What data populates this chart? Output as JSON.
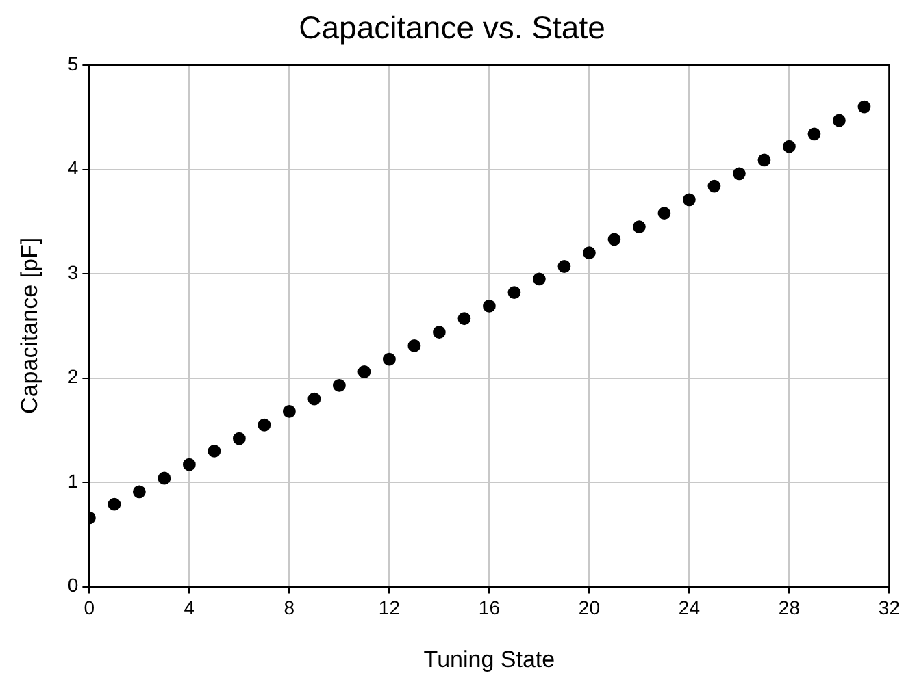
{
  "chart_data": {
    "type": "scatter",
    "title": "Capacitance vs. State",
    "xlabel": "Tuning State",
    "ylabel": "Capacitance [pF]",
    "x": [
      0,
      1,
      2,
      3,
      4,
      5,
      6,
      7,
      8,
      9,
      10,
      11,
      12,
      13,
      14,
      15,
      16,
      17,
      18,
      19,
      20,
      21,
      22,
      23,
      24,
      25,
      26,
      27,
      28,
      29,
      30,
      31
    ],
    "series": [
      {
        "color": "#000000",
        "values": [
          0.66,
          0.79,
          0.91,
          1.04,
          1.17,
          1.3,
          1.42,
          1.55,
          1.68,
          1.8,
          1.93,
          2.06,
          2.18,
          2.31,
          2.44,
          2.57,
          2.69,
          2.82,
          2.95,
          3.07,
          3.2,
          3.33,
          3.45,
          3.58,
          3.71,
          3.84,
          3.96,
          4.09,
          4.22,
          4.34,
          4.47,
          4.6
        ]
      }
    ],
    "xlim": [
      0,
      32
    ],
    "xticks": [
      0,
      4,
      8,
      12,
      16,
      20,
      24,
      28,
      32
    ],
    "ylim": [
      0,
      5
    ],
    "yticks": [
      0,
      1,
      2,
      3,
      4,
      5
    ],
    "grid": true,
    "legend": false,
    "marker": "circle"
  }
}
